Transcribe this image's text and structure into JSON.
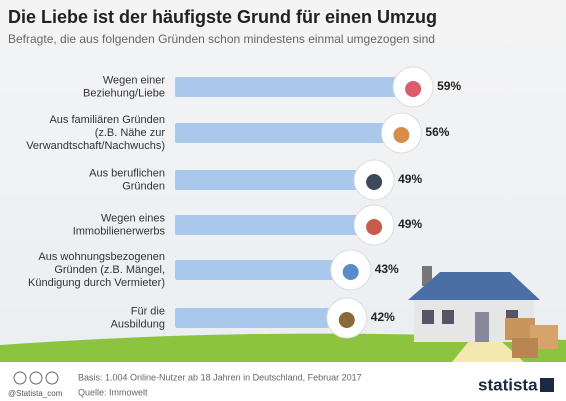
{
  "chart_data": {
    "type": "bar",
    "orientation": "horizontal",
    "title": "Die Liebe ist der häufigste Grund für einen Umzug",
    "subtitle": "Befragte, die aus folgenden Gründen schon mindestens einmal umgezogen sind",
    "categories": [
      "Wegen einer\nBeziehung/Liebe",
      "Aus familiären Gründen\n(z.B. Nähe zur\nVerwandtschaft/Nachwuchs)",
      "Aus beruflichen\nGründen",
      "Wegen eines\nImmobilienerwerbs",
      "Aus wohnungsbezogenen\nGründen (z.B. Mängel,\nKündigung durch Vermieter)",
      "Für die\nAusbildung"
    ],
    "values": [
      59,
      56,
      49,
      49,
      43,
      42
    ],
    "value_labels": [
      "59%",
      "56%",
      "49%",
      "49%",
      "43%",
      "42%"
    ],
    "color": "#a9c8ec",
    "source": "Quelle: Immowelt",
    "note": "Basis: 1.004 Online-Nutzer ab 18 Jahren in Deutschland, Februar 2017",
    "credit": "@Statista_com",
    "brand": "statista"
  }
}
